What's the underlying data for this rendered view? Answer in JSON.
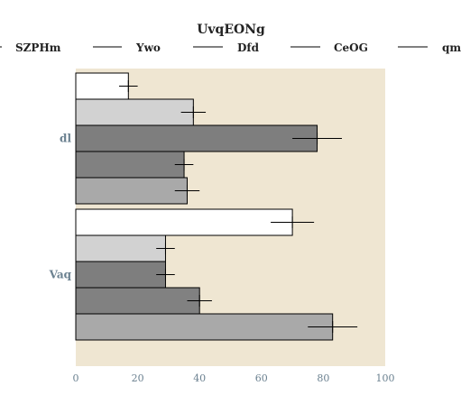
{
  "chart_data": {
    "type": "bar",
    "orientation": "horizontal",
    "title": "UvqEONg",
    "xlabel": "",
    "ylabel": "",
    "xlim": [
      0,
      100
    ],
    "xticks": [
      0,
      20,
      40,
      60,
      80,
      100
    ],
    "categories": [
      "dl",
      "Vaq"
    ],
    "legend_position": "top",
    "background": "#efe6d2",
    "series": [
      {
        "name": "SZPHm",
        "color": "#ffffff",
        "values": [
          17,
          70
        ],
        "errors": [
          3,
          7
        ]
      },
      {
        "name": "Ywo",
        "color": "#d2d2d2",
        "values": [
          38,
          29
        ],
        "errors": [
          4,
          3
        ]
      },
      {
        "name": "Dfd",
        "color": "#7e7e7e",
        "values": [
          78,
          29
        ],
        "errors": [
          8,
          3
        ]
      },
      {
        "name": "CeOG",
        "color": "#818181",
        "values": [
          35,
          40
        ],
        "errors": [
          3,
          4
        ]
      },
      {
        "name": "qm",
        "color": "#a9a9a9",
        "values": [
          36,
          83
        ],
        "errors": [
          4,
          8
        ]
      }
    ]
  }
}
